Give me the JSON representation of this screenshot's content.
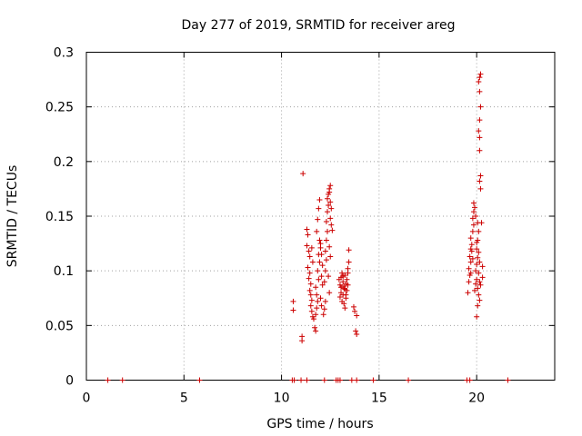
{
  "chart_data": {
    "type": "scatter",
    "title": "Day 277 of 2019, SRMTID for receiver areg",
    "xlabel": "GPS time / hours",
    "ylabel": "SRMTID / TECUs",
    "xlim": [
      0,
      24
    ],
    "ylim": [
      0,
      0.3
    ],
    "xticks": [
      0,
      5,
      10,
      15,
      20
    ],
    "yticks": [
      0,
      0.05,
      0.1,
      0.15,
      0.2,
      0.25,
      0.3
    ],
    "xtick_labels": [
      "0",
      "5",
      "10",
      "15",
      "20"
    ],
    "ytick_labels": [
      "0",
      "0.05",
      "0.1",
      "0.15",
      "0.2",
      "0.25",
      "0.3"
    ],
    "grid": true,
    "marker": "+",
    "color": "#cc0000",
    "series": [
      {
        "name": "SRMTID",
        "points": [
          [
            1.1,
            0
          ],
          [
            1.85,
            0
          ],
          [
            5.8,
            0
          ],
          [
            10.55,
            0
          ],
          [
            10.65,
            0
          ],
          [
            11.0,
            0
          ],
          [
            11.3,
            0
          ],
          [
            12.2,
            0
          ],
          [
            12.8,
            0
          ],
          [
            12.9,
            0
          ],
          [
            13.0,
            0
          ],
          [
            13.6,
            0
          ],
          [
            13.85,
            0
          ],
          [
            14.7,
            0
          ],
          [
            16.5,
            0
          ],
          [
            19.5,
            0
          ],
          [
            19.65,
            0
          ],
          [
            21.6,
            0
          ],
          [
            10.6,
            0.072
          ],
          [
            10.6,
            0.064
          ],
          [
            11.05,
            0.04
          ],
          [
            11.05,
            0.036
          ],
          [
            11.1,
            0.189
          ],
          [
            11.3,
            0.138
          ],
          [
            11.35,
            0.133
          ],
          [
            11.3,
            0.123
          ],
          [
            11.4,
            0.118
          ],
          [
            11.35,
            0.103
          ],
          [
            11.45,
            0.098
          ],
          [
            11.4,
            0.093
          ],
          [
            11.5,
            0.088
          ],
          [
            11.45,
            0.082
          ],
          [
            11.5,
            0.078
          ],
          [
            11.55,
            0.073
          ],
          [
            11.5,
            0.068
          ],
          [
            11.55,
            0.063
          ],
          [
            11.6,
            0.058
          ],
          [
            11.65,
            0.056
          ],
          [
            11.6,
            0.108
          ],
          [
            11.45,
            0.113
          ],
          [
            11.55,
            0.121
          ],
          [
            11.7,
            0.048
          ],
          [
            11.75,
            0.045
          ],
          [
            11.75,
            0.06
          ],
          [
            11.8,
            0.066
          ],
          [
            11.85,
            0.072
          ],
          [
            11.8,
            0.078
          ],
          [
            11.75,
            0.085
          ],
          [
            11.9,
            0.092
          ],
          [
            11.85,
            0.1
          ],
          [
            11.95,
            0.108
          ],
          [
            11.9,
            0.115
          ],
          [
            12.0,
            0.121
          ],
          [
            11.95,
            0.128
          ],
          [
            11.8,
            0.136
          ],
          [
            11.85,
            0.147
          ],
          [
            11.9,
            0.157
          ],
          [
            11.95,
            0.165
          ],
          [
            12.0,
            0.125
          ],
          [
            12.05,
            0.115
          ],
          [
            12.1,
            0.105
          ],
          [
            12.05,
            0.095
          ],
          [
            12.1,
            0.087
          ],
          [
            12.0,
            0.075
          ],
          [
            12.05,
            0.068
          ],
          [
            12.15,
            0.06
          ],
          [
            12.2,
            0.065
          ],
          [
            12.25,
            0.072
          ],
          [
            12.2,
            0.09
          ],
          [
            12.25,
            0.1
          ],
          [
            12.3,
            0.11
          ],
          [
            12.25,
            0.118
          ],
          [
            12.3,
            0.128
          ],
          [
            12.35,
            0.136
          ],
          [
            12.3,
            0.145
          ],
          [
            12.35,
            0.154
          ],
          [
            12.4,
            0.16
          ],
          [
            12.35,
            0.166
          ],
          [
            12.4,
            0.17
          ],
          [
            12.45,
            0.175
          ],
          [
            12.5,
            0.178
          ],
          [
            12.45,
            0.172
          ],
          [
            12.5,
            0.163
          ],
          [
            12.55,
            0.157
          ],
          [
            12.5,
            0.148
          ],
          [
            12.55,
            0.142
          ],
          [
            12.6,
            0.137
          ],
          [
            12.45,
            0.122
          ],
          [
            12.5,
            0.113
          ],
          [
            12.4,
            0.095
          ],
          [
            12.45,
            0.08
          ],
          [
            12.95,
            0.092
          ],
          [
            13.0,
            0.087
          ],
          [
            13.05,
            0.08
          ],
          [
            13.0,
            0.076
          ],
          [
            13.1,
            0.072
          ],
          [
            13.05,
            0.094
          ],
          [
            13.1,
            0.098
          ],
          [
            13.15,
            0.09
          ],
          [
            13.2,
            0.084
          ],
          [
            13.15,
            0.078
          ],
          [
            13.2,
            0.07
          ],
          [
            13.25,
            0.066
          ],
          [
            13.2,
            0.086
          ],
          [
            13.25,
            0.096
          ],
          [
            13.3,
            0.088
          ],
          [
            13.35,
            0.082
          ],
          [
            13.3,
            0.075
          ],
          [
            13.35,
            0.092
          ],
          [
            13.4,
            0.098
          ],
          [
            13.45,
            0.108
          ],
          [
            13.4,
            0.102
          ],
          [
            13.45,
            0.119
          ],
          [
            13.4,
            0.087
          ],
          [
            13.3,
            0.078
          ],
          [
            13.25,
            0.083
          ],
          [
            13.15,
            0.095
          ],
          [
            13.05,
            0.085
          ],
          [
            13.7,
            0.067
          ],
          [
            13.75,
            0.063
          ],
          [
            13.85,
            0.059
          ],
          [
            13.8,
            0.045
          ],
          [
            13.85,
            0.042
          ],
          [
            19.55,
            0.08
          ],
          [
            19.6,
            0.09
          ],
          [
            19.65,
            0.096
          ],
          [
            19.6,
            0.102
          ],
          [
            19.7,
            0.108
          ],
          [
            19.65,
            0.113
          ],
          [
            19.7,
            0.12
          ],
          [
            19.75,
            0.124
          ],
          [
            19.7,
            0.13
          ],
          [
            19.8,
            0.136
          ],
          [
            19.85,
            0.142
          ],
          [
            19.8,
            0.148
          ],
          [
            19.85,
            0.154
          ],
          [
            19.9,
            0.158
          ],
          [
            19.85,
            0.162
          ],
          [
            19.75,
            0.118
          ],
          [
            19.8,
            0.111
          ],
          [
            19.7,
            0.098
          ],
          [
            19.9,
            0.082
          ],
          [
            19.95,
            0.088
          ],
          [
            20.0,
            0.092
          ],
          [
            19.95,
            0.1
          ],
          [
            20.0,
            0.106
          ],
          [
            20.05,
            0.112
          ],
          [
            20.0,
            0.12
          ],
          [
            20.05,
            0.128
          ],
          [
            20.1,
            0.136
          ],
          [
            20.05,
            0.144
          ],
          [
            19.95,
            0.15
          ],
          [
            20.0,
            0.126
          ],
          [
            20.1,
            0.117
          ],
          [
            20.15,
            0.108
          ],
          [
            20.1,
            0.098
          ],
          [
            20.15,
            0.09
          ],
          [
            20.05,
            0.084
          ],
          [
            20.1,
            0.078
          ],
          [
            20.05,
            0.068
          ],
          [
            20.0,
            0.058
          ],
          [
            20.15,
            0.073
          ],
          [
            20.2,
            0.087
          ],
          [
            20.15,
            0.182
          ],
          [
            20.2,
            0.187
          ],
          [
            20.2,
            0.175
          ],
          [
            20.15,
            0.21
          ],
          [
            20.15,
            0.222
          ],
          [
            20.1,
            0.228
          ],
          [
            20.15,
            0.238
          ],
          [
            20.2,
            0.25
          ],
          [
            20.15,
            0.264
          ],
          [
            20.1,
            0.273
          ],
          [
            20.15,
            0.277
          ],
          [
            20.2,
            0.28
          ],
          [
            20.25,
            0.144
          ],
          [
            20.3,
            0.104
          ],
          [
            20.3,
            0.094
          ]
        ]
      }
    ]
  }
}
